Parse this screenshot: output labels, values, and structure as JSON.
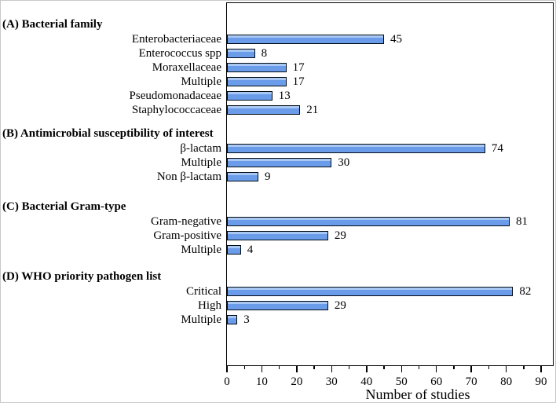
{
  "chart_data": {
    "type": "bar",
    "orientation": "horizontal",
    "title": "",
    "xlabel": "Number of studies",
    "ylabel": "",
    "xlim": [
      0,
      94
    ],
    "x_ticks": [
      0,
      10,
      20,
      30,
      40,
      50,
      60,
      70,
      80,
      90
    ],
    "minor_tick_step": 5,
    "grid": false,
    "legend": false,
    "bar_fill_color": "#6b9ce9",
    "bar_highlight_color": "#a9c7f3",
    "bar_border_color": "#000a14",
    "groups": [
      {
        "label": "(A) Bacterial family",
        "items": [
          {
            "label": "Enterobacteriaceae",
            "value": 45
          },
          {
            "label": "Enterococcus spp",
            "value": 8
          },
          {
            "label": "Moraxellaceae",
            "value": 17
          },
          {
            "label": "Multiple",
            "value": 17
          },
          {
            "label": "Pseudomonadaceae",
            "value": 13
          },
          {
            "label": "Staphylococcaceae",
            "value": 21
          }
        ]
      },
      {
        "label": "(B) Antimicrobial susceptibility of interest",
        "items": [
          {
            "label": "β-lactam",
            "value": 74
          },
          {
            "label": "Multiple",
            "value": 30
          },
          {
            "label": "Non β-lactam",
            "value": 9
          }
        ]
      },
      {
        "label": "(C) Bacterial Gram-type",
        "items": [
          {
            "label": "Gram-negative",
            "value": 81
          },
          {
            "label": "Gram-positive",
            "value": 29
          },
          {
            "label": "Multiple",
            "value": 4
          }
        ]
      },
      {
        "label": "(D) WHO priority pathogen list",
        "items": [
          {
            "label": "Critical",
            "value": 82
          },
          {
            "label": "High",
            "value": 29
          },
          {
            "label": "Multiple",
            "value": 3
          }
        ]
      }
    ]
  }
}
